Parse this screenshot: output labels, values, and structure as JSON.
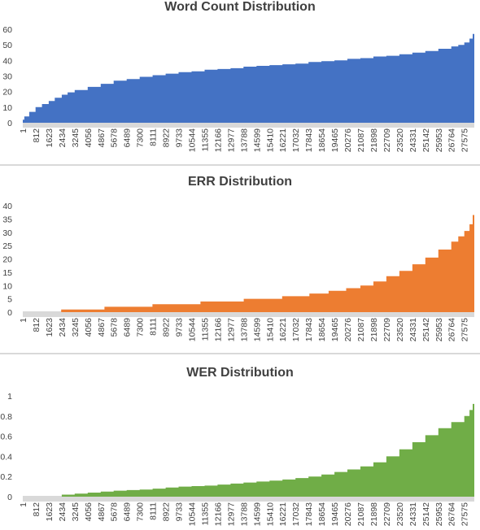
{
  "chart_data": [
    {
      "type": "area",
      "title": "Word Count Distribution",
      "color": "#4472c4",
      "xlabel": "",
      "ylabel": "",
      "ylim": [
        0,
        60
      ],
      "yticks": [
        0,
        10,
        20,
        30,
        40,
        50,
        60
      ],
      "xlim": [
        1,
        28200
      ],
      "xticks": [
        1,
        812,
        1623,
        2434,
        3245,
        4056,
        4867,
        5678,
        6489,
        7300,
        8111,
        8922,
        9733,
        10544,
        11355,
        12166,
        12977,
        13788,
        14599,
        15410,
        16221,
        17032,
        17843,
        18654,
        19465,
        20276,
        21087,
        21898,
        22709,
        23520,
        24331,
        25142,
        25953,
        26764,
        27575
      ],
      "grid": false,
      "series": [
        {
          "x": [
            1,
            100,
            400,
            800,
            1200,
            1623,
            2000,
            2434,
            2800,
            3245,
            4056,
            4867,
            5678,
            6489,
            7300,
            8111,
            8922,
            9733,
            10544,
            11355,
            12166,
            12977,
            13788,
            14599,
            15410,
            16221,
            17032,
            17843,
            18654,
            19465,
            20276,
            21087,
            21898,
            22709,
            23520,
            24331,
            25142,
            25953,
            26764,
            27200,
            27575,
            27900,
            28100,
            28200
          ],
          "values": [
            2,
            4,
            7,
            10,
            12,
            14,
            16,
            18,
            19.5,
            21,
            23,
            25,
            27,
            28,
            29.5,
            30.5,
            31.5,
            32.5,
            33,
            34,
            34.5,
            35,
            36,
            36.5,
            37,
            37.5,
            38,
            39,
            39.5,
            40,
            41,
            41.5,
            42.5,
            43,
            44,
            45,
            46,
            47.5,
            49,
            50,
            51.5,
            54,
            57,
            60
          ]
        }
      ]
    },
    {
      "type": "area",
      "title": "ERR Distribution",
      "color": "#ed7d31",
      "xlabel": "",
      "ylabel": "",
      "ylim": [
        0,
        40
      ],
      "yticks": [
        0,
        5,
        10,
        15,
        20,
        25,
        30,
        35,
        40
      ],
      "xlim": [
        1,
        28200
      ],
      "xticks": [
        1,
        812,
        1623,
        2434,
        3245,
        4056,
        4867,
        5678,
        6489,
        7300,
        8111,
        8922,
        9733,
        10544,
        11355,
        12166,
        12977,
        13788,
        14599,
        15410,
        16221,
        17032,
        17843,
        18654,
        19465,
        20276,
        21087,
        21898,
        22709,
        23520,
        24331,
        25142,
        25953,
        26764,
        27575
      ],
      "grid": false,
      "series": [
        {
          "x": [
            1,
            2300,
            2400,
            5000,
            5100,
            8000,
            8100,
            11000,
            11100,
            13700,
            13800,
            16100,
            16200,
            17800,
            17900,
            19000,
            19100,
            20100,
            20200,
            21000,
            21087,
            21898,
            22709,
            23520,
            24331,
            25142,
            25953,
            26764,
            27200,
            27575,
            27900,
            28100,
            28200
          ],
          "values": [
            0,
            0,
            1,
            1,
            2,
            2,
            3,
            3,
            4,
            4,
            5,
            5,
            6,
            6,
            7,
            7,
            8,
            8,
            9,
            9,
            10,
            11.5,
            13.5,
            15.5,
            18,
            20.5,
            23.5,
            26.5,
            28.5,
            30.5,
            33,
            36.5,
            40
          ]
        }
      ]
    },
    {
      "type": "area",
      "title": "WER Distribution",
      "color": "#70ad47",
      "xlabel": "",
      "ylabel": "",
      "ylim": [
        0,
        1
      ],
      "yticks": [
        0,
        0.2,
        0.4,
        0.6,
        0.8,
        1
      ],
      "xlim": [
        1,
        28200
      ],
      "xticks": [
        1,
        812,
        1623,
        2434,
        3245,
        4056,
        4867,
        5678,
        6489,
        7300,
        8111,
        8922,
        9733,
        10544,
        11355,
        12166,
        12977,
        13788,
        14599,
        15410,
        16221,
        17032,
        17843,
        18654,
        19465,
        20276,
        21087,
        21898,
        22709,
        23520,
        24331,
        25142,
        25953,
        26764,
        27575
      ],
      "grid": false,
      "series": [
        {
          "x": [
            1,
            2300,
            2434,
            3245,
            4056,
            4867,
            5678,
            6489,
            7300,
            8111,
            8922,
            9733,
            10544,
            11355,
            12166,
            12977,
            13788,
            14599,
            15410,
            16221,
            17032,
            17843,
            18654,
            19465,
            20276,
            21087,
            21898,
            22709,
            23520,
            24331,
            25142,
            25953,
            26764,
            27575,
            27900,
            28100,
            28200
          ],
          "values": [
            0,
            0,
            0.02,
            0.03,
            0.04,
            0.05,
            0.06,
            0.065,
            0.07,
            0.08,
            0.09,
            0.1,
            0.105,
            0.11,
            0.12,
            0.13,
            0.14,
            0.15,
            0.16,
            0.17,
            0.185,
            0.2,
            0.22,
            0.245,
            0.27,
            0.3,
            0.34,
            0.4,
            0.47,
            0.54,
            0.61,
            0.68,
            0.74,
            0.8,
            0.86,
            0.92,
            1.0
          ]
        }
      ]
    }
  ]
}
